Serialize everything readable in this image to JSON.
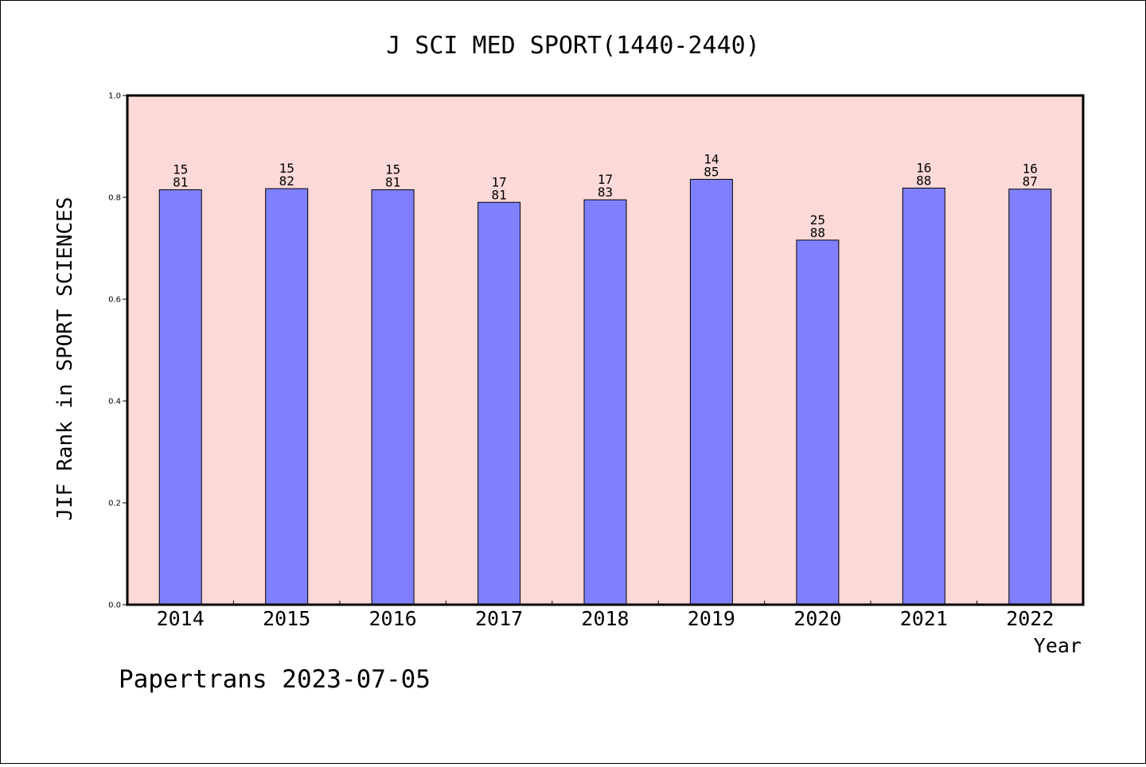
{
  "chart_data": {
    "type": "bar",
    "title": "J SCI MED SPORT(1440-2440)",
    "xlabel": "Year",
    "ylabel": "JIF Rank in SPORT SCIENCES",
    "ylim": [
      0,
      1.0
    ],
    "yticks": [
      "0.0",
      "0.2",
      "0.4",
      "0.6",
      "0.8",
      "1.0"
    ],
    "grid": false,
    "categories": [
      "2014",
      "2015",
      "2016",
      "2017",
      "2018",
      "2019",
      "2020",
      "2021",
      "2022"
    ],
    "values": [
      0.8148,
      0.8171,
      0.8148,
      0.7901,
      0.7952,
      0.8353,
      0.7159,
      0.8182,
      0.8161
    ],
    "bar_labels": [
      [
        "15",
        "81"
      ],
      [
        "15",
        "82"
      ],
      [
        "15",
        "81"
      ],
      [
        "17",
        "81"
      ],
      [
        "17",
        "83"
      ],
      [
        "14",
        "85"
      ],
      [
        "25",
        "88"
      ],
      [
        "16",
        "88"
      ],
      [
        "16",
        "87"
      ]
    ],
    "colors": {
      "plot_background": "#fdd9d7",
      "bar_fill": "#8080ff",
      "bar_stroke": "#000000"
    }
  },
  "footer": "Papertrans 2023-07-05"
}
